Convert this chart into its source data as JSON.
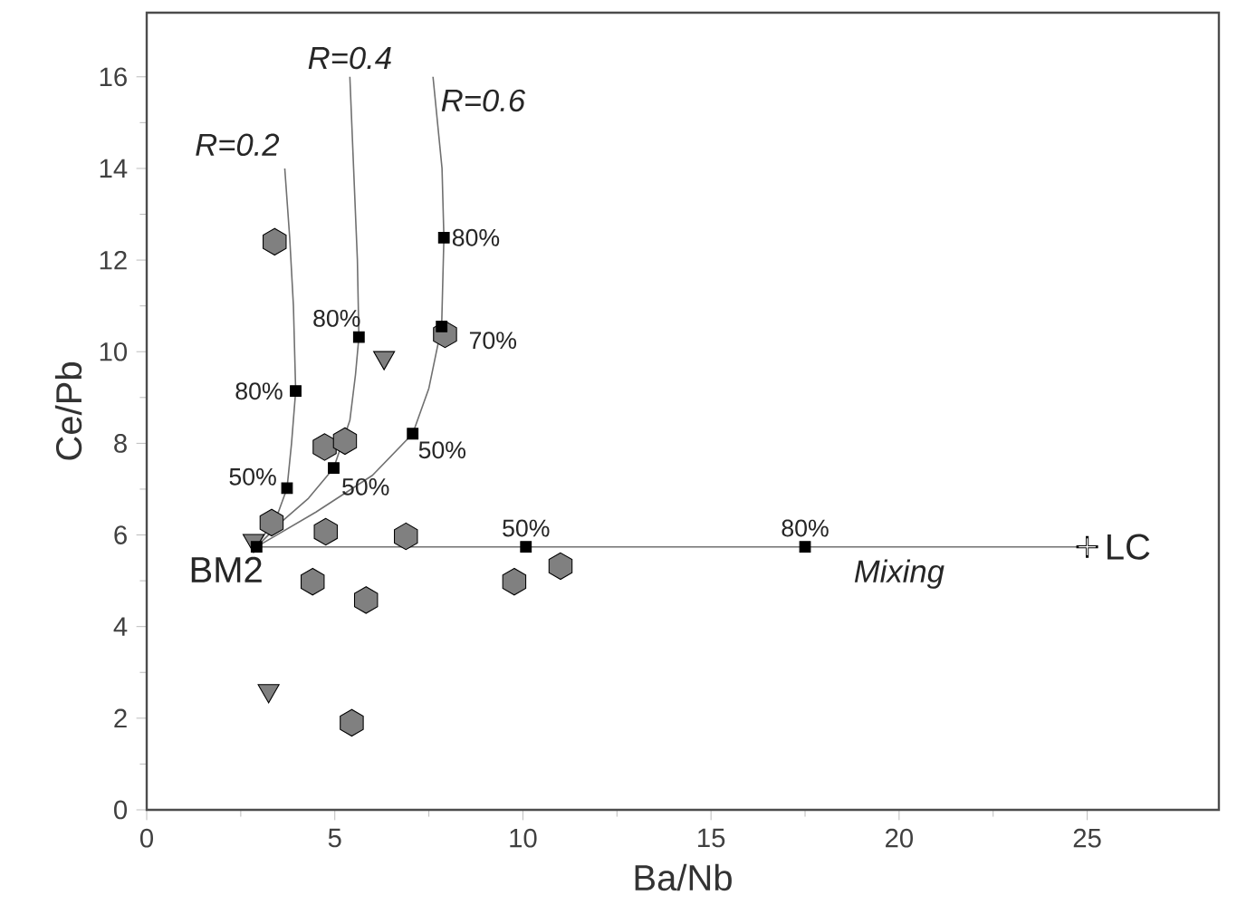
{
  "chart_data": {
    "type": "scatter",
    "xlabel": "Ba/Nb",
    "ylabel": "Ce/Pb",
    "xlim": [
      0,
      28.5
    ],
    "ylim": [
      0,
      17.4
    ],
    "xticks": [
      0,
      5,
      10,
      15,
      20,
      25
    ],
    "yticks": [
      0,
      2,
      4,
      6,
      8,
      10,
      12,
      14,
      16
    ],
    "series": [
      {
        "type": "line",
        "marker": "none",
        "color": "#707070",
        "x": [
          2.92,
          3.2,
          3.5,
          3.73,
          3.85,
          3.96,
          3.9,
          3.8,
          3.67
        ],
        "values": [
          5.74,
          6.1,
          6.5,
          7.02,
          8.0,
          9.14,
          11.0,
          12.5,
          14.0
        ]
      },
      {
        "type": "line",
        "marker": "none",
        "color": "#707070",
        "x": [
          2.92,
          3.6,
          4.3,
          4.97,
          5.4,
          5.55,
          5.64,
          5.6,
          5.5,
          5.4
        ],
        "values": [
          5.74,
          6.3,
          6.8,
          7.46,
          8.5,
          9.5,
          10.32,
          12.0,
          14.0,
          16.0
        ]
      },
      {
        "type": "line",
        "marker": "none",
        "color": "#707070",
        "x": [
          2.92,
          4.5,
          6.0,
          7.07,
          7.5,
          7.84,
          7.9,
          7.85,
          7.61
        ],
        "values": [
          5.74,
          6.5,
          7.3,
          8.21,
          9.2,
          10.55,
          12.49,
          14.0,
          16.0
        ]
      },
      {
        "type": "line",
        "color": "#707070",
        "x": [
          2.92,
          25
        ],
        "values": [
          5.74,
          5.74
        ]
      },
      {
        "color": "#808080",
        "x": [
          3.4,
          4.73,
          5.27,
          3.32,
          4.76,
          6.89,
          4.41,
          5.83,
          9.77,
          11.0,
          5.45,
          7.93
        ],
        "values": [
          12.4,
          7.92,
          8.05,
          6.27,
          6.07,
          5.97,
          4.98,
          4.58,
          4.98,
          5.32,
          1.9,
          10.38
        ]
      },
      {
        "marker": "triangle",
        "color": "#808080",
        "x": [
          3.24,
          6.31,
          2.84
        ],
        "values": [
          2.6,
          9.87,
          5.88
        ]
      },
      {
        "marker": "square",
        "color": "#000000",
        "x": [
          2.92,
          3.73,
          3.96,
          4.97,
          5.64,
          7.07,
          7.84,
          7.9,
          10.08,
          17.5
        ],
        "values": [
          5.74,
          7.02,
          9.14,
          7.46,
          10.32,
          8.21,
          10.55,
          12.49,
          5.74,
          5.74
        ]
      },
      {
        "marker": "cross",
        "color": "#000000",
        "x": [
          25
        ],
        "values": [
          5.74
        ]
      }
    ],
    "annotations": [
      {
        "text": "R=0.2",
        "x": 3.67,
        "y": 14.0
      },
      {
        "text": "R=0.4",
        "x": 5.4,
        "y": 16.0
      },
      {
        "text": "R=0.6",
        "x": 7.61,
        "y": 16.0
      },
      {
        "text": "50%",
        "x": 3.73,
        "y": 7.02
      },
      {
        "text": "80%",
        "x": 3.96,
        "y": 9.14
      },
      {
        "text": "80%",
        "x": 5.64,
        "y": 10.32
      },
      {
        "text": "50%",
        "x": 4.97,
        "y": 7.46
      },
      {
        "text": "50%",
        "x": 7.07,
        "y": 8.21
      },
      {
        "text": "70%",
        "x": 7.84,
        "y": 10.55
      },
      {
        "text": "80%",
        "x": 7.9,
        "y": 12.49
      },
      {
        "text": "50%",
        "x": 10.08,
        "y": 5.74
      },
      {
        "text": "80%",
        "x": 17.5,
        "y": 5.74
      },
      {
        "text": "BM2",
        "x": 2.92,
        "y": 5.74
      },
      {
        "text": "LC",
        "x": 25,
        "y": 5.74
      },
      {
        "text": "Mixing",
        "x": 20,
        "y": 5.74
      }
    ]
  }
}
